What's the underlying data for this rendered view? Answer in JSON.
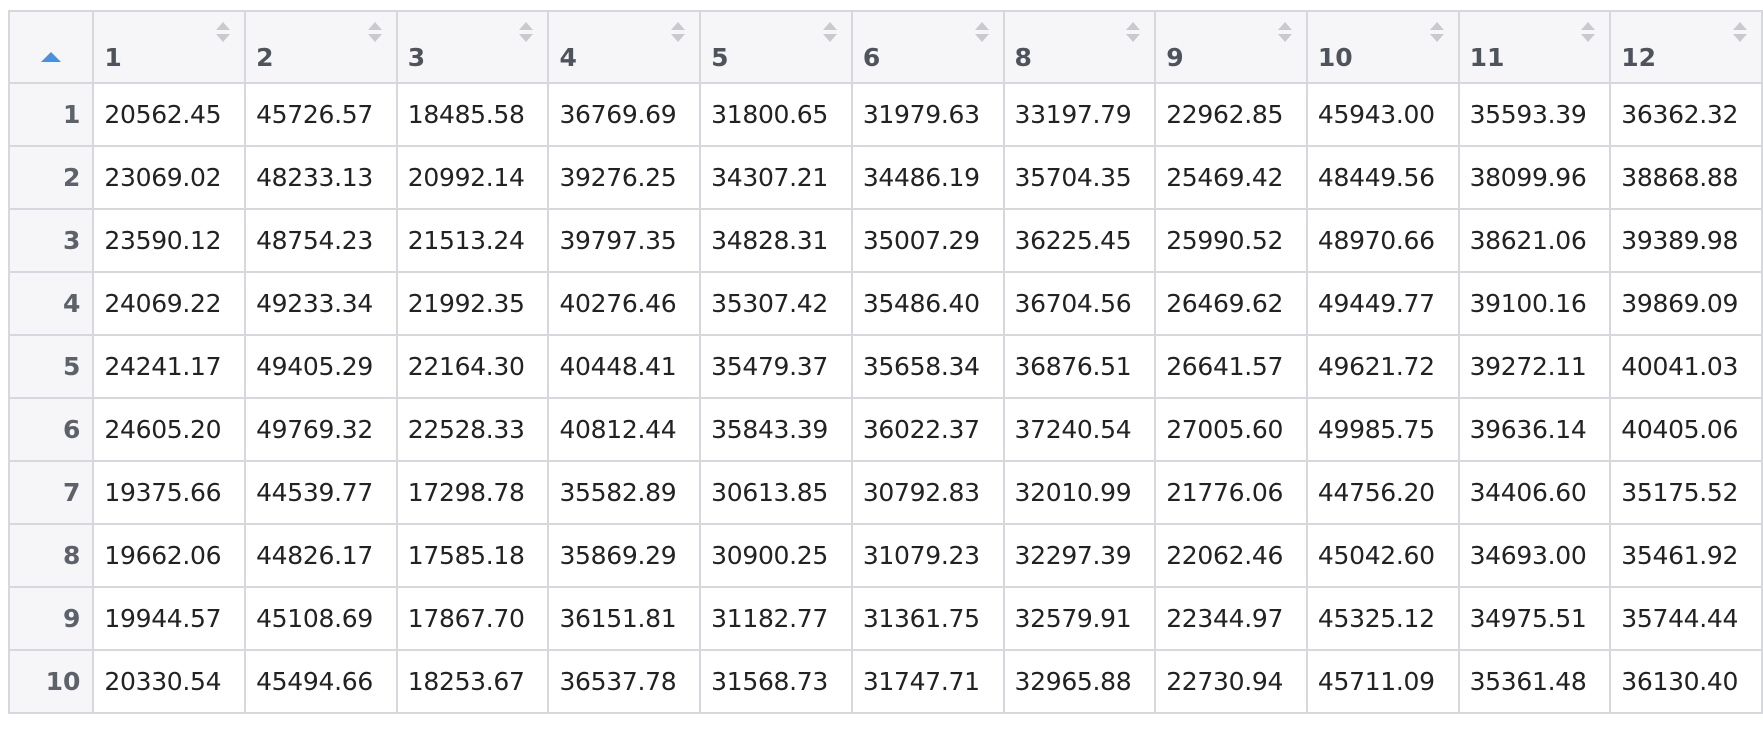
{
  "table": {
    "columns": [
      "1",
      "2",
      "3",
      "4",
      "5",
      "6",
      "8",
      "9",
      "10",
      "11",
      "12"
    ],
    "rows": [
      {
        "index": "1",
        "cells": [
          "20562.45",
          "45726.57",
          "18485.58",
          "36769.69",
          "31800.65",
          "31979.63",
          "33197.79",
          "22962.85",
          "45943.00",
          "35593.39",
          "36362.32"
        ]
      },
      {
        "index": "2",
        "cells": [
          "23069.02",
          "48233.13",
          "20992.14",
          "39276.25",
          "34307.21",
          "34486.19",
          "35704.35",
          "25469.42",
          "48449.56",
          "38099.96",
          "38868.88"
        ]
      },
      {
        "index": "3",
        "cells": [
          "23590.12",
          "48754.23",
          "21513.24",
          "39797.35",
          "34828.31",
          "35007.29",
          "36225.45",
          "25990.52",
          "48970.66",
          "38621.06",
          "39389.98"
        ]
      },
      {
        "index": "4",
        "cells": [
          "24069.22",
          "49233.34",
          "21992.35",
          "40276.46",
          "35307.42",
          "35486.40",
          "36704.56",
          "26469.62",
          "49449.77",
          "39100.16",
          "39869.09"
        ]
      },
      {
        "index": "5",
        "cells": [
          "24241.17",
          "49405.29",
          "22164.30",
          "40448.41",
          "35479.37",
          "35658.34",
          "36876.51",
          "26641.57",
          "49621.72",
          "39272.11",
          "40041.03"
        ]
      },
      {
        "index": "6",
        "cells": [
          "24605.20",
          "49769.32",
          "22528.33",
          "40812.44",
          "35843.39",
          "36022.37",
          "37240.54",
          "27005.60",
          "49985.75",
          "39636.14",
          "40405.06"
        ]
      },
      {
        "index": "7",
        "cells": [
          "19375.66",
          "44539.77",
          "17298.78",
          "35582.89",
          "30613.85",
          "30792.83",
          "32010.99",
          "21776.06",
          "44756.20",
          "34406.60",
          "35175.52"
        ]
      },
      {
        "index": "8",
        "cells": [
          "19662.06",
          "44826.17",
          "17585.18",
          "35869.29",
          "30900.25",
          "31079.23",
          "32297.39",
          "22062.46",
          "45042.60",
          "34693.00",
          "35461.92"
        ]
      },
      {
        "index": "9",
        "cells": [
          "19944.57",
          "45108.69",
          "17867.70",
          "36151.81",
          "31182.77",
          "31361.75",
          "32579.91",
          "22344.97",
          "45325.12",
          "34975.51",
          "35744.44"
        ]
      },
      {
        "index": "10",
        "cells": [
          "20330.54",
          "45494.66",
          "18253.67",
          "36537.78",
          "31568.73",
          "31747.71",
          "32965.88",
          "22730.94",
          "45711.09",
          "35361.48",
          "36130.40"
        ]
      }
    ],
    "sort": {
      "column": "index",
      "direction": "ascending"
    },
    "icons": {
      "sorted": "sort-ascending-icon",
      "unsorted": "sort-both-icon"
    },
    "colors": {
      "header_bg": "#f6f6f9",
      "border": "#d6d8de",
      "sort_active": "#4a90e2",
      "sort_inactive": "#c8cad0"
    }
  }
}
